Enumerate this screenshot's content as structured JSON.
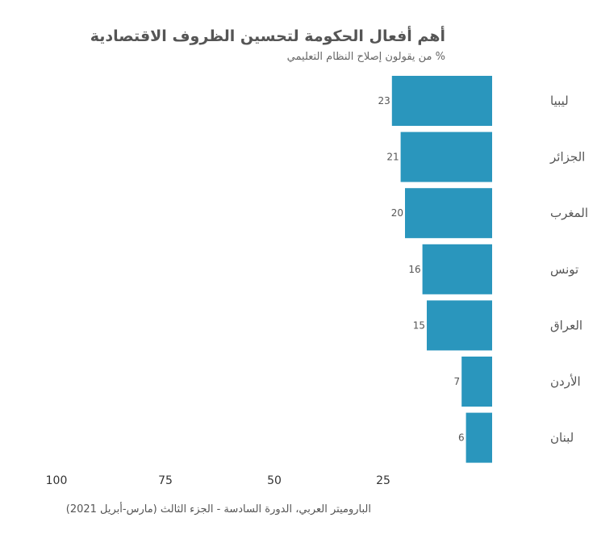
{
  "chart_data": {
    "type": "bar",
    "orientation": "horizontal",
    "title": "أهم أفعال الحكومة لتحسين الظروف الاقتصادية",
    "subtitle": "% من يقولون إصلاح النظام التعليمي",
    "categories": [
      "ليبيا",
      "الجزائر",
      "المغرب",
      "تونس",
      "العراق",
      "الأردن",
      "لبنان"
    ],
    "values": [
      23,
      21,
      20,
      16,
      15,
      7,
      6
    ],
    "xticks": [
      100,
      75,
      50,
      25
    ],
    "xlim": [
      0,
      100
    ],
    "x_direction": "reversed",
    "bar_color": "#2a96bd",
    "grid": false,
    "source": "الباروميتر العربي، الدورة السادسة - الجزء الثالث (مارس-أبريل 2021)"
  }
}
